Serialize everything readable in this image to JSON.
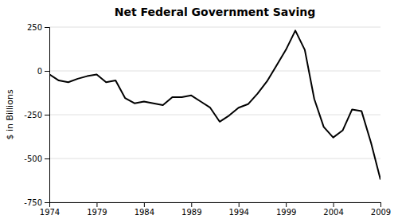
{
  "chart_data": {
    "type": "line",
    "title": "Net Federal Government Saving",
    "y_label": "$ in Billions",
    "x": [
      1974,
      1975,
      1976,
      1977,
      1978,
      1979,
      1980,
      1981,
      1982,
      1983,
      1984,
      1985,
      1986,
      1987,
      1988,
      1989,
      1990,
      1991,
      1992,
      1993,
      1994,
      1995,
      1996,
      1997,
      1998,
      1999,
      2000,
      2001,
      2002,
      2003,
      2004,
      2005,
      2006,
      2007,
      2008,
      2009
    ],
    "values": [
      -20,
      -55,
      -65,
      -45,
      -30,
      -20,
      -65,
      -55,
      -155,
      -185,
      -175,
      -185,
      -195,
      -150,
      -150,
      -140,
      -175,
      -210,
      -290,
      -255,
      -210,
      -190,
      -130,
      -60,
      30,
      120,
      230,
      120,
      -160,
      -320,
      -380,
      -340,
      -220,
      -230,
      -410,
      -620
    ],
    "color": "#000000",
    "xlim": [
      1974,
      2009
    ],
    "ylim": [
      -750,
      250
    ],
    "xticks": [
      1974,
      1979,
      1984,
      1989,
      1994,
      1999,
      2004,
      2009
    ],
    "yticks": [
      -750,
      -500,
      -250,
      0,
      250
    ],
    "grid": true
  }
}
